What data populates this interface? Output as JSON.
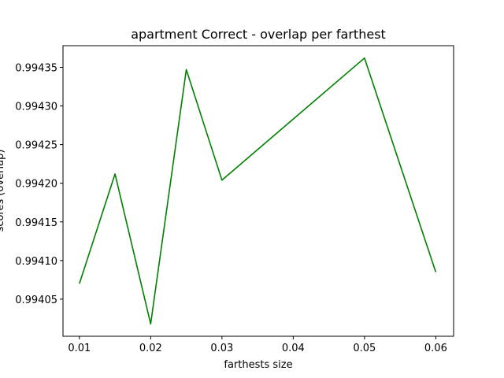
{
  "chart_data": {
    "type": "line",
    "title": "apartment Correct - overlap per farthest",
    "xlabel": "farthests size",
    "ylabel": "scores (overlap)",
    "x": [
      0.01,
      0.015,
      0.02,
      0.025,
      0.03,
      0.05,
      0.06
    ],
    "series": [
      {
        "values": [
          0.99407,
          0.994212,
          0.994018,
          0.994347,
          0.994204,
          0.994362,
          0.994085
        ],
        "color": "#008000"
      }
    ],
    "xlim": [
      0.0077,
      0.0625
    ],
    "ylim": [
      0.994002,
      0.994378
    ],
    "xticks": [
      0.01,
      0.02,
      0.03,
      0.04,
      0.05,
      0.06
    ],
    "xtick_labels": [
      "0.01",
      "0.02",
      "0.03",
      "0.04",
      "0.05",
      "0.06"
    ],
    "yticks": [
      0.99405,
      0.9941,
      0.99415,
      0.9942,
      0.99425,
      0.9943,
      0.99435
    ],
    "ytick_labels": [
      "0.99405",
      "0.99410",
      "0.99415",
      "0.99420",
      "0.99425",
      "0.99430",
      "0.99435"
    ],
    "grid": false
  }
}
